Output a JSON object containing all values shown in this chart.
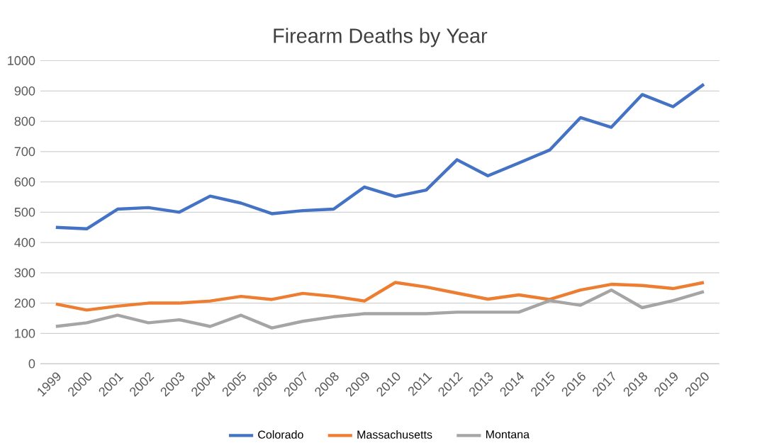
{
  "chart_data": {
    "type": "line",
    "title": "Firearm Deaths by Year",
    "categories": [
      "1999",
      "2000",
      "2001",
      "2002",
      "2003",
      "2004",
      "2005",
      "2006",
      "2007",
      "2008",
      "2009",
      "2010",
      "2011",
      "2012",
      "2013",
      "2014",
      "2015",
      "2016",
      "2017",
      "2018",
      "2019",
      "2020"
    ],
    "series": [
      {
        "name": "Colorado",
        "color": "#4472c4",
        "values": [
          450,
          445,
          510,
          515,
          500,
          553,
          530,
          495,
          505,
          510,
          583,
          552,
          573,
          673,
          620,
          662,
          705,
          812,
          780,
          888,
          848,
          922
        ]
      },
      {
        "name": "Massachusetts",
        "color": "#ed7d31",
        "values": [
          197,
          177,
          190,
          200,
          200,
          207,
          222,
          212,
          232,
          222,
          207,
          268,
          253,
          233,
          213,
          227,
          212,
          243,
          262,
          258,
          248,
          268
        ]
      },
      {
        "name": "Montana",
        "color": "#a5a5a5",
        "values": [
          123,
          135,
          160,
          135,
          145,
          123,
          160,
          118,
          140,
          155,
          165,
          165,
          165,
          170,
          170,
          170,
          208,
          193,
          243,
          185,
          208,
          238
        ]
      }
    ],
    "ylim": [
      0,
      1000
    ],
    "yticks": [
      0,
      100,
      200,
      300,
      400,
      500,
      600,
      700,
      800,
      900,
      1000
    ],
    "grid": "y",
    "legend": "bottom",
    "marker": "none",
    "line_style": "solid"
  }
}
